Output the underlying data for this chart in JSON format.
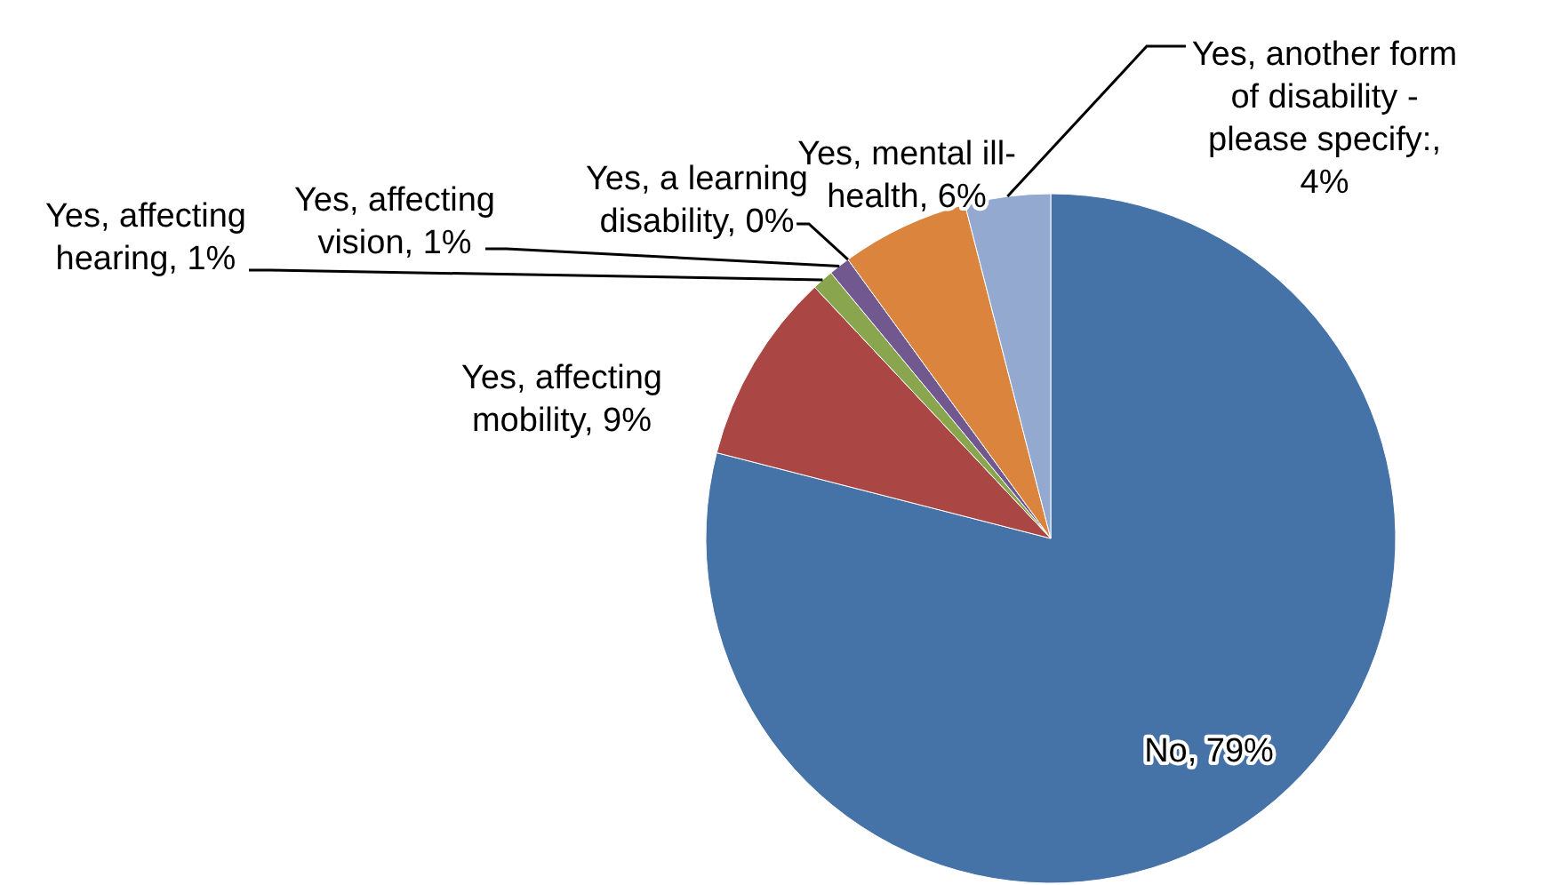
{
  "chart_data": {
    "type": "pie",
    "categories": [
      "No, 79%",
      "Yes, affecting mobility, 9%",
      "Yes, affecting hearing, 1%",
      "Yes, affecting vision, 1%",
      "Yes, a learning disability, 0%",
      "Yes, mental ill-health, 6%",
      "Yes, another form of disability - please specify:, 4%"
    ],
    "values": [
      79,
      9,
      1,
      1,
      0,
      6,
      4
    ],
    "colors": [
      "#4572a7",
      "#aa4643",
      "#89a54e",
      "#71588f",
      "#4198af",
      "#db843d",
      "#93a9cf"
    ]
  }
}
